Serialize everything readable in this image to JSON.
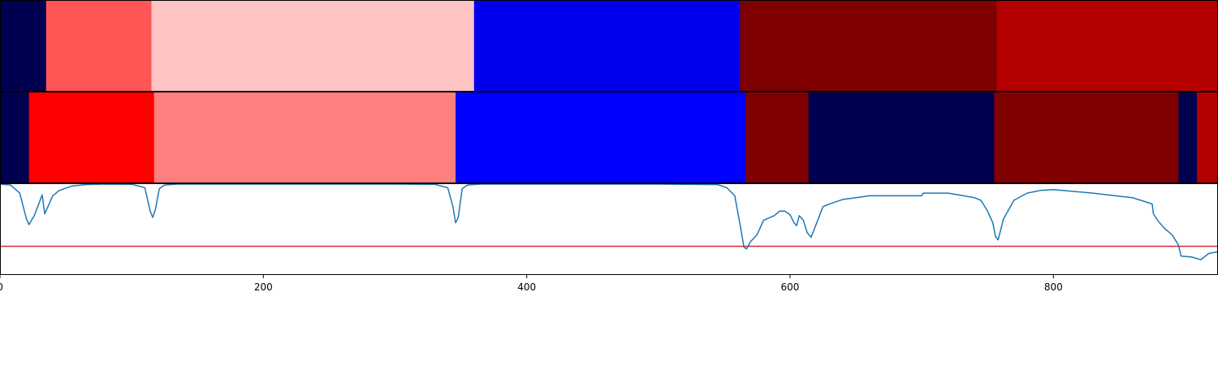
{
  "chart_data": [
    {
      "type": "heatmap",
      "panel": "segment-track-top",
      "xlim": [
        0,
        925
      ],
      "segments": [
        {
          "start": 0,
          "end": 35,
          "color": "#000050"
        },
        {
          "start": 35,
          "end": 115,
          "color": "#ff5555"
        },
        {
          "start": 115,
          "end": 360,
          "color": "#ffc4c4"
        },
        {
          "start": 360,
          "end": 562,
          "color": "#0000ee"
        },
        {
          "start": 562,
          "end": 757,
          "color": "#7f0000"
        },
        {
          "start": 757,
          "end": 925,
          "color": "#b40000"
        }
      ]
    },
    {
      "type": "heatmap",
      "panel": "segment-track-bottom",
      "xlim": [
        0,
        925
      ],
      "segments": [
        {
          "start": 0,
          "end": 22,
          "color": "#000050"
        },
        {
          "start": 22,
          "end": 117,
          "color": "#ff0000"
        },
        {
          "start": 117,
          "end": 346,
          "color": "#ff7f7f"
        },
        {
          "start": 346,
          "end": 566,
          "color": "#0000ff"
        },
        {
          "start": 566,
          "end": 614,
          "color": "#7f0000"
        },
        {
          "start": 614,
          "end": 755,
          "color": "#000050"
        },
        {
          "start": 755,
          "end": 895,
          "color": "#7f0000"
        },
        {
          "start": 895,
          "end": 909,
          "color": "#000050"
        },
        {
          "start": 909,
          "end": 925,
          "color": "#b40000"
        }
      ]
    },
    {
      "type": "line",
      "panel": "signal-track",
      "xlim": [
        0,
        925
      ],
      "ylim": [
        0,
        1
      ],
      "xticks": [
        0,
        200,
        400,
        600,
        800
      ],
      "threshold": {
        "y": 0.31,
        "color": "#d62728"
      },
      "series": [
        {
          "color": "#1f77b4",
          "x": [
            0,
            8,
            15,
            20,
            22,
            24,
            26,
            30,
            32,
            34,
            37,
            40,
            45,
            55,
            65,
            80,
            100,
            110,
            114,
            116,
            118,
            121,
            125,
            135,
            150,
            200,
            300,
            330,
            340,
            344,
            346,
            348,
            351,
            355,
            365,
            400,
            500,
            545,
            552,
            558,
            562,
            565,
            567,
            570,
            575,
            580,
            588,
            592,
            596,
            600,
            603,
            605,
            607,
            610,
            613,
            616,
            620,
            625,
            630,
            640,
            650,
            660,
            680,
            700,
            701,
            720,
            732,
            740,
            745,
            750,
            754,
            756,
            758,
            762,
            770,
            780,
            790,
            800,
            830,
            860,
            875,
            876,
            880,
            885,
            890,
            893,
            895,
            897,
            905,
            912,
            918,
            925
          ],
          "y": [
            1.0,
            0.99,
            0.9,
            0.62,
            0.55,
            0.6,
            0.65,
            0.8,
            0.88,
            0.67,
            0.77,
            0.87,
            0.93,
            0.98,
            0.995,
            1.0,
            0.998,
            0.96,
            0.7,
            0.63,
            0.72,
            0.95,
            0.99,
            1.0,
            1.0,
            1.0,
            1.0,
            0.998,
            0.96,
            0.75,
            0.57,
            0.63,
            0.95,
            0.99,
            1.0,
            1.0,
            1.0,
            0.995,
            0.96,
            0.87,
            0.55,
            0.3,
            0.28,
            0.36,
            0.44,
            0.6,
            0.65,
            0.7,
            0.7,
            0.66,
            0.57,
            0.54,
            0.65,
            0.6,
            0.46,
            0.41,
            0.56,
            0.75,
            0.78,
            0.83,
            0.85,
            0.87,
            0.87,
            0.87,
            0.9,
            0.9,
            0.87,
            0.85,
            0.82,
            0.7,
            0.57,
            0.42,
            0.38,
            0.61,
            0.82,
            0.9,
            0.93,
            0.94,
            0.9,
            0.85,
            0.78,
            0.67,
            0.58,
            0.5,
            0.44,
            0.37,
            0.32,
            0.2,
            0.19,
            0.16,
            0.23,
            0.25
          ]
        }
      ]
    }
  ]
}
